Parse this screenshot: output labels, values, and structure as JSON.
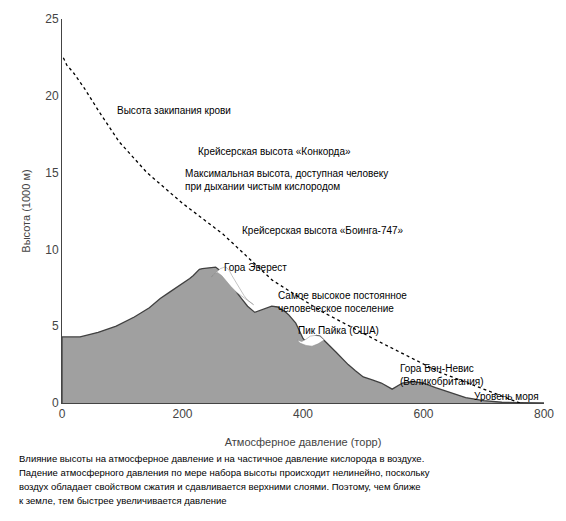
{
  "chart_data": {
    "type": "line",
    "xlabel": "Атмосферное давление (торр)",
    "ylabel": "Высота (1000 м)",
    "xlim": [
      0,
      800
    ],
    "ylim": [
      0,
      25
    ],
    "xticks": [
      0,
      200,
      400,
      600,
      800
    ],
    "yticks": [
      0,
      5,
      10,
      15,
      20,
      25
    ],
    "grid": false,
    "series": [
      {
        "type": "area",
        "color": "#a0a0a0",
        "x": [
          0,
          0,
          30,
          60,
          90,
          120,
          145,
          163,
          178,
          190,
          202,
          212,
          218,
          223,
          228,
          233,
          238,
          243,
          248,
          255,
          260,
          265,
          270,
          275,
          280,
          285,
          290,
          298,
          308,
          320,
          335,
          348,
          358,
          365,
          370,
          376,
          382,
          388,
          394,
          400,
          407,
          415,
          422,
          428,
          435,
          445,
          455,
          465,
          475,
          487,
          500,
          515,
          530,
          548,
          565,
          582,
          600,
          620,
          645,
          670,
          700,
          730,
          760,
          800
        ],
        "values": [
          0,
          4.3,
          4.3,
          4.6,
          5.0,
          5.6,
          6.2,
          6.8,
          7.2,
          7.5,
          7.8,
          8.1,
          8.3,
          8.5,
          8.7,
          8.75,
          8.78,
          8.82,
          8.84,
          8.85,
          8.7,
          8.5,
          8.3,
          8.1,
          7.9,
          7.6,
          7.2,
          6.8,
          6.3,
          5.9,
          6.1,
          6.3,
          6.25,
          6.1,
          5.95,
          5.75,
          5.5,
          5.2,
          4.7,
          4.2,
          3.9,
          4.2,
          4.4,
          4.35,
          4.1,
          3.7,
          3.3,
          2.9,
          2.5,
          2.1,
          1.7,
          1.5,
          1.3,
          0.9,
          1.3,
          1.4,
          1.3,
          1.0,
          0.7,
          0.35,
          0.15,
          0.05,
          0.02,
          0
        ]
      },
      {
        "type": "line",
        "color": "#404040",
        "line_style": "solid",
        "x": [
          0,
          0,
          30,
          60,
          90,
          120,
          145,
          163,
          178,
          190,
          202,
          212,
          218,
          223,
          228,
          233,
          238,
          243,
          248,
          255,
          260,
          265,
          270,
          275,
          280,
          285,
          290,
          298,
          308,
          320,
          335,
          348,
          358,
          365,
          370,
          376,
          382,
          388,
          394,
          400,
          407,
          415,
          422,
          428,
          435,
          445,
          455,
          465,
          475,
          487,
          500,
          515,
          530,
          548,
          565,
          582,
          600,
          620,
          645,
          670,
          700,
          730,
          760,
          800
        ],
        "values": [
          0,
          4.3,
          4.3,
          4.6,
          5.0,
          5.6,
          6.2,
          6.8,
          7.2,
          7.5,
          7.8,
          8.1,
          8.3,
          8.5,
          8.7,
          8.75,
          8.78,
          8.82,
          8.84,
          8.85,
          8.7,
          8.5,
          8.3,
          8.1,
          7.9,
          7.6,
          7.2,
          6.8,
          6.3,
          5.9,
          6.1,
          6.3,
          6.25,
          6.1,
          5.95,
          5.75,
          5.5,
          5.2,
          4.7,
          4.2,
          3.9,
          4.2,
          4.4,
          4.35,
          4.1,
          3.7,
          3.3,
          2.9,
          2.5,
          2.1,
          1.7,
          1.5,
          1.3,
          0.9,
          1.3,
          1.4,
          1.3,
          1.0,
          0.7,
          0.35,
          0.15,
          0.05,
          0.02,
          0
        ]
      },
      {
        "type": "polygon",
        "color": "#ffffff",
        "x": [
          250,
          255,
          260,
          263,
          267,
          270,
          273,
          278,
          282,
          288,
          295,
          302,
          308,
          315,
          318,
          310,
          300,
          290,
          280,
          272,
          265,
          258,
          252,
          248,
          250
        ],
        "values": [
          8.3,
          8.5,
          8.65,
          8.75,
          8.82,
          8.85,
          8.82,
          8.6,
          8.3,
          7.9,
          7.4,
          7.0,
          6.7,
          6.5,
          6.4,
          6.6,
          6.9,
          7.2,
          7.6,
          8.0,
          8.3,
          8.5,
          8.4,
          8.2,
          8.3
        ]
      },
      {
        "type": "polygon",
        "color": "#ffffff",
        "x": [
          390,
          398,
          405,
          412,
          420,
          428,
          435,
          425,
          415,
          405,
          395,
          390
        ],
        "values": [
          4.1,
          4.0,
          4.15,
          4.35,
          4.4,
          4.35,
          4.1,
          3.85,
          3.7,
          3.75,
          3.9,
          4.1
        ]
      },
      {
        "type": "line",
        "color": "#000000",
        "line_style": "dotted",
        "x": [
          760,
          693,
          627,
          526,
          429,
          349,
          267,
          200,
          141,
          95,
          61,
          37,
          19,
          8,
          2
        ],
        "values": [
          0,
          1,
          2,
          4,
          6,
          8,
          11,
          13,
          15,
          17,
          19,
          20.5,
          21.5,
          22,
          22.5
        ]
      }
    ],
    "annotations": [
      [
        "Высота закипания крови"
      ],
      [
        "Крейсерская высота «Конкорда»"
      ],
      [
        "Максимальная высота, доступная человеку",
        "при дыхании чистым кислородом"
      ],
      [
        "Крейсерская высота «Боинга-747»"
      ],
      [
        "Гора Эверест"
      ],
      [
        "Самое высокое постоянное",
        "человеческое поселение"
      ],
      [
        "Пик Пайка (США)"
      ],
      [
        "Гора Бен-Невис",
        "(Великобритания)"
      ],
      [
        "Уровень моря"
      ]
    ],
    "caption": [
      "Влияние высоты на атмосферное давление и на частичное давление кислорода в воздухе.",
      "Падение атмосферного давления по мере набора высоты происходит нелинейно, поскольку",
      "воздух обладает свойством сжатия и сдавливается верхними слоями. Поэтому, чем ближе",
      "к земле, тем быстрее увеличивается давление"
    ]
  }
}
